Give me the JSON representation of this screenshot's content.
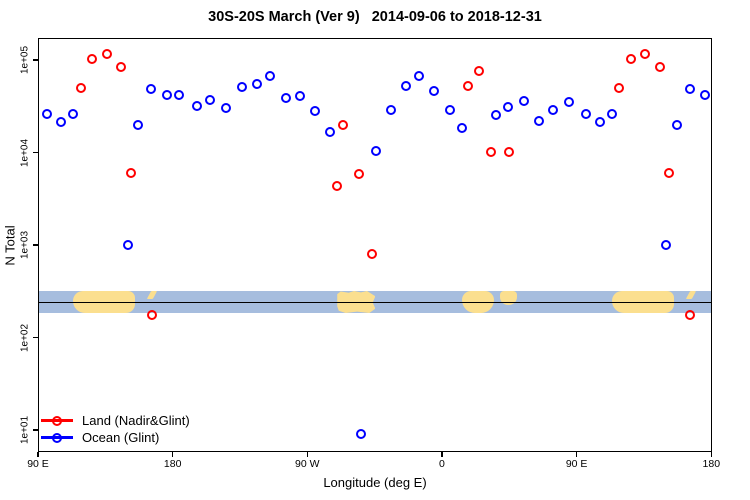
{
  "chart_data": {
    "type": "scatter",
    "title": "30S-20S March (Ver 9)   2014-09-06 to 2018-12-31",
    "xlabel": "Longitude (deg E)",
    "ylabel": "N Total",
    "x_axis": {
      "range_deg_east": [
        90,
        540
      ],
      "ticks": [
        {
          "deg": 90,
          "label": "90 E"
        },
        {
          "deg": 180,
          "label": "180"
        },
        {
          "deg": 270,
          "label": "90 W"
        },
        {
          "deg": 360,
          "label": "0"
        },
        {
          "deg": 450,
          "label": "90 E"
        },
        {
          "deg": 540,
          "label": "180"
        }
      ]
    },
    "y_axis": {
      "scale": "log10",
      "range": [
        8,
        200000
      ],
      "ticks": [
        {
          "value": 100000,
          "label": "1e+05"
        },
        {
          "value": 10000,
          "label": "1e+04"
        },
        {
          "value": 1000,
          "label": "1e+03"
        },
        {
          "value": 100,
          "label": "1e+02"
        },
        {
          "value": 10,
          "label": "1e+01"
        }
      ]
    },
    "series": [
      {
        "name": "Land (Nadir&Glint)",
        "color": "#ff0000",
        "marker": "open-circle",
        "points": [
          [
            118.5,
            50000
          ],
          [
            126,
            103000
          ],
          [
            136,
            116000
          ],
          [
            145.5,
            84000
          ],
          [
            152,
            6000
          ],
          [
            166,
            175
          ],
          [
            290,
            4300
          ],
          [
            294,
            20000
          ],
          [
            304.5,
            5900
          ],
          [
            313,
            800
          ],
          [
            377.5,
            52000
          ],
          [
            385,
            76000
          ],
          [
            392.5,
            10100
          ],
          [
            405,
            10100
          ],
          [
            478.5,
            50000
          ],
          [
            486,
            103000
          ],
          [
            496,
            116000
          ],
          [
            505.5,
            84000
          ],
          [
            512,
            6000
          ],
          [
            526,
            175
          ]
        ]
      },
      {
        "name": "Ocean (Glint)",
        "color": "#0000ff",
        "marker": "open-circle",
        "points": [
          [
            96,
            26000
          ],
          [
            105.5,
            21500
          ],
          [
            113.5,
            26000
          ],
          [
            150,
            1000
          ],
          [
            157,
            20000
          ],
          [
            165.5,
            49000
          ],
          [
            176,
            42000
          ],
          [
            184,
            42000
          ],
          [
            196.5,
            32000
          ],
          [
            205,
            37000
          ],
          [
            215.5,
            30500
          ],
          [
            226.5,
            51000
          ],
          [
            236.5,
            55000
          ],
          [
            245,
            67000
          ],
          [
            255.5,
            39000
          ],
          [
            265,
            41000
          ],
          [
            275,
            28000
          ],
          [
            285,
            16500
          ],
          [
            306,
            9
          ],
          [
            316,
            10300
          ],
          [
            326,
            29000
          ],
          [
            336,
            52000
          ],
          [
            344.5,
            67000
          ],
          [
            355,
            46000
          ],
          [
            365.5,
            29000
          ],
          [
            373.5,
            18400
          ],
          [
            396,
            25500
          ],
          [
            404,
            31000
          ],
          [
            415,
            36000
          ],
          [
            425,
            22000
          ],
          [
            434,
            29000
          ],
          [
            445,
            35000
          ],
          [
            456,
            26000
          ],
          [
            465.5,
            21500
          ],
          [
            473.5,
            26000
          ],
          [
            510,
            1000
          ],
          [
            517,
            20000
          ],
          [
            525.5,
            49000
          ],
          [
            536,
            42000
          ]
        ]
      }
    ],
    "map_band": {
      "description": "20S-30S latitude strip world map drawn across plot",
      "ocean_color": "#a6bdde",
      "land_color": "#fbdf8f",
      "center_line_color": "#000000",
      "land_patches": [
        {
          "name": "australia",
          "deg0": 113.5,
          "deg1": 155,
          "top_pct": 0,
          "height_pct": 100,
          "shape": "australia"
        },
        {
          "name": "new-caledonia",
          "deg0": 164.5,
          "deg1": 168.5,
          "top_pct": 0,
          "height_pct": 36,
          "shape": "island"
        },
        {
          "name": "south-america",
          "deg0": 290,
          "deg1": 315.5,
          "top_pct": 0,
          "height_pct": 100,
          "shape": "ragged"
        },
        {
          "name": "africa",
          "deg0": 373.5,
          "deg1": 394.5,
          "top_pct": 0,
          "height_pct": 100,
          "shape": "africa"
        },
        {
          "name": "madagascar",
          "deg0": 399,
          "deg1": 410,
          "top_pct": 0,
          "height_pct": 62,
          "shape": "madagascar"
        },
        {
          "name": "australia",
          "deg0": 473.5,
          "deg1": 515,
          "top_pct": 0,
          "height_pct": 100,
          "shape": "australia"
        },
        {
          "name": "new-caledonia",
          "deg0": 524.5,
          "deg1": 528.5,
          "top_pct": 0,
          "height_pct": 36,
          "shape": "island"
        }
      ]
    },
    "legend": {
      "position": "bottom-left-inside"
    }
  }
}
